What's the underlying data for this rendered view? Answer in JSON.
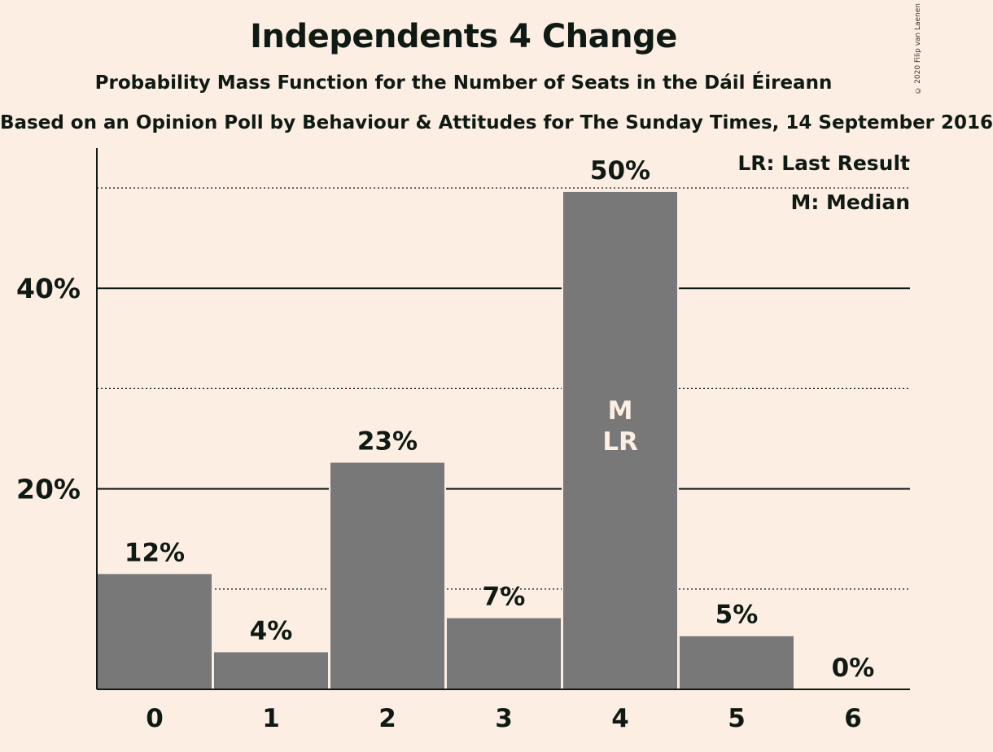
{
  "title": "Independents 4 Change",
  "subtitle": "Probability Mass Function for the Number of Seats in the Dáil Éireann",
  "source": "Based on an Opinion Poll by Behaviour & Attitudes for The Sunday Times, 14 September 2016",
  "copyright": "© 2020 Filip van Laenen",
  "legend": {
    "last_result": "LR: Last Result",
    "median": "M: Median"
  },
  "chart_data": {
    "type": "bar",
    "categories": [
      "0",
      "1",
      "2",
      "3",
      "4",
      "5",
      "6"
    ],
    "values": [
      11.5,
      3.7,
      22.6,
      7.1,
      49.6,
      5.3,
      0.0
    ],
    "value_labels": [
      "12%",
      "4%",
      "23%",
      "7%",
      "50%",
      "5%",
      "0%"
    ],
    "ylim": [
      0,
      54
    ],
    "yticks": [
      20,
      40
    ],
    "ytick_labels": [
      "20%",
      "40%"
    ],
    "minor_gridlines": [
      10,
      30,
      50
    ],
    "median_category": "4",
    "last_result_category": "4",
    "median_marker": "M",
    "last_result_marker": "LR",
    "bar_color": "#787878",
    "label_color_inside": "#FDEEE3"
  }
}
